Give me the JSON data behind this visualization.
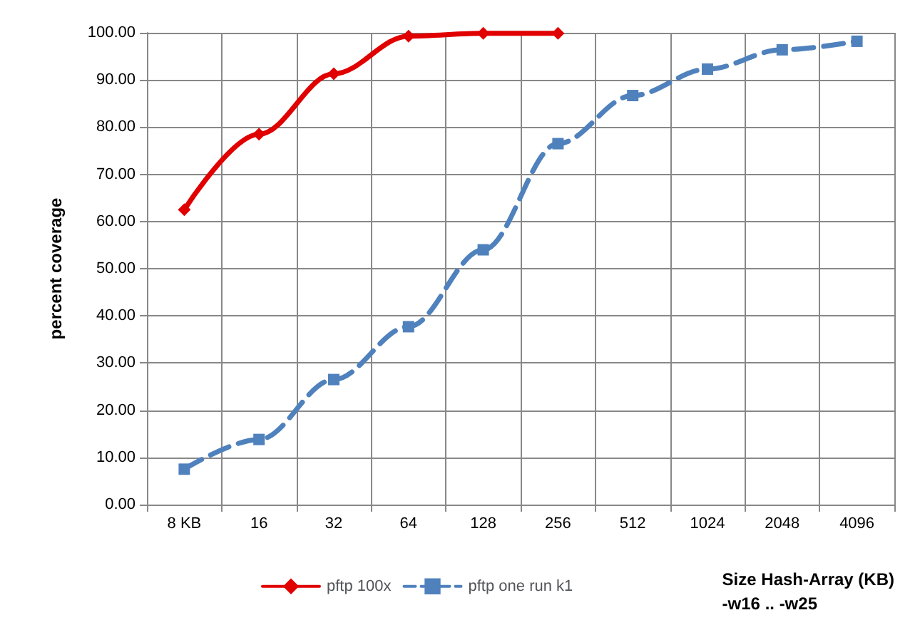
{
  "chart_data": {
    "type": "line",
    "ylabel": "percent coverage",
    "xlabel": "Size Hash-Array (KB)\n-w16 .. -w25",
    "categories": [
      "8 KB",
      "16",
      "32",
      "64",
      "128",
      "256",
      "512",
      "1024",
      "2048",
      "4096"
    ],
    "series": [
      {
        "name": "pftp 100x",
        "color": "#e00000",
        "marker": "diamond",
        "line_style": "solid",
        "values": [
          62.5,
          78.5,
          91.3,
          99.3,
          99.9,
          99.9,
          null,
          null,
          null,
          null
        ]
      },
      {
        "name": "pftp one run k1",
        "color": "#4f81bd",
        "marker": "square",
        "line_style": "dashed",
        "values": [
          7.5,
          13.8,
          26.5,
          37.7,
          54.0,
          76.5,
          86.7,
          92.3,
          96.4,
          98.2
        ]
      }
    ],
    "ylim": [
      0,
      100
    ],
    "yticks": [
      {
        "value": 0,
        "label": "0.00"
      },
      {
        "value": 10,
        "label": "10.00"
      },
      {
        "value": 20,
        "label": "20.00"
      },
      {
        "value": 30,
        "label": "30.00"
      },
      {
        "value": 40,
        "label": "40.00"
      },
      {
        "value": 50,
        "label": "50.00"
      },
      {
        "value": 60,
        "label": "60.00"
      },
      {
        "value": 70,
        "label": "70.00"
      },
      {
        "value": 80,
        "label": "80.00"
      },
      {
        "value": 90,
        "label": "90.00"
      },
      {
        "value": 100,
        "label": "100.00"
      }
    ],
    "grid": true,
    "legend": "bottom"
  }
}
